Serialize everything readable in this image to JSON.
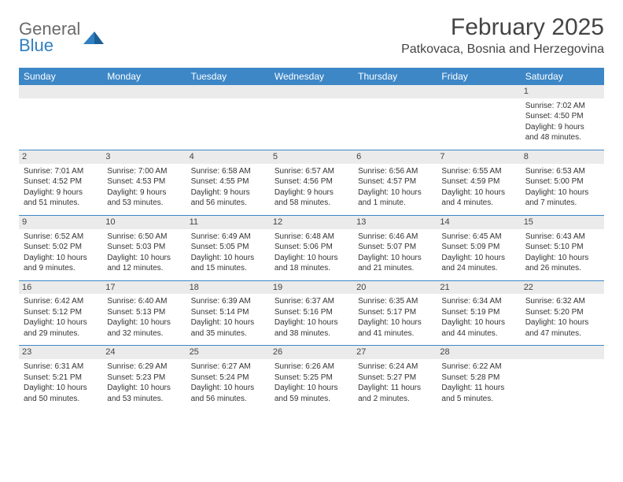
{
  "logo": {
    "line1": "General",
    "line2": "Blue"
  },
  "title": "February 2025",
  "location": "Patkovaca, Bosnia and Herzegovina",
  "colors": {
    "header_bg": "#3d87c7",
    "header_text": "#ffffff",
    "divider": "#3d87c7",
    "daynum_bg": "#ebebeb",
    "logo_gray": "#6a6a6a",
    "logo_blue": "#2f7fc2",
    "page_bg": "#ffffff"
  },
  "day_names": [
    "Sunday",
    "Monday",
    "Tuesday",
    "Wednesday",
    "Thursday",
    "Friday",
    "Saturday"
  ],
  "weeks": [
    [
      {
        "n": "",
        "sr": "",
        "ss": "",
        "dl": ""
      },
      {
        "n": "",
        "sr": "",
        "ss": "",
        "dl": ""
      },
      {
        "n": "",
        "sr": "",
        "ss": "",
        "dl": ""
      },
      {
        "n": "",
        "sr": "",
        "ss": "",
        "dl": ""
      },
      {
        "n": "",
        "sr": "",
        "ss": "",
        "dl": ""
      },
      {
        "n": "",
        "sr": "",
        "ss": "",
        "dl": ""
      },
      {
        "n": "1",
        "sr": "Sunrise: 7:02 AM",
        "ss": "Sunset: 4:50 PM",
        "dl": "Daylight: 9 hours and 48 minutes."
      }
    ],
    [
      {
        "n": "2",
        "sr": "Sunrise: 7:01 AM",
        "ss": "Sunset: 4:52 PM",
        "dl": "Daylight: 9 hours and 51 minutes."
      },
      {
        "n": "3",
        "sr": "Sunrise: 7:00 AM",
        "ss": "Sunset: 4:53 PM",
        "dl": "Daylight: 9 hours and 53 minutes."
      },
      {
        "n": "4",
        "sr": "Sunrise: 6:58 AM",
        "ss": "Sunset: 4:55 PM",
        "dl": "Daylight: 9 hours and 56 minutes."
      },
      {
        "n": "5",
        "sr": "Sunrise: 6:57 AM",
        "ss": "Sunset: 4:56 PM",
        "dl": "Daylight: 9 hours and 58 minutes."
      },
      {
        "n": "6",
        "sr": "Sunrise: 6:56 AM",
        "ss": "Sunset: 4:57 PM",
        "dl": "Daylight: 10 hours and 1 minute."
      },
      {
        "n": "7",
        "sr": "Sunrise: 6:55 AM",
        "ss": "Sunset: 4:59 PM",
        "dl": "Daylight: 10 hours and 4 minutes."
      },
      {
        "n": "8",
        "sr": "Sunrise: 6:53 AM",
        "ss": "Sunset: 5:00 PM",
        "dl": "Daylight: 10 hours and 7 minutes."
      }
    ],
    [
      {
        "n": "9",
        "sr": "Sunrise: 6:52 AM",
        "ss": "Sunset: 5:02 PM",
        "dl": "Daylight: 10 hours and 9 minutes."
      },
      {
        "n": "10",
        "sr": "Sunrise: 6:50 AM",
        "ss": "Sunset: 5:03 PM",
        "dl": "Daylight: 10 hours and 12 minutes."
      },
      {
        "n": "11",
        "sr": "Sunrise: 6:49 AM",
        "ss": "Sunset: 5:05 PM",
        "dl": "Daylight: 10 hours and 15 minutes."
      },
      {
        "n": "12",
        "sr": "Sunrise: 6:48 AM",
        "ss": "Sunset: 5:06 PM",
        "dl": "Daylight: 10 hours and 18 minutes."
      },
      {
        "n": "13",
        "sr": "Sunrise: 6:46 AM",
        "ss": "Sunset: 5:07 PM",
        "dl": "Daylight: 10 hours and 21 minutes."
      },
      {
        "n": "14",
        "sr": "Sunrise: 6:45 AM",
        "ss": "Sunset: 5:09 PM",
        "dl": "Daylight: 10 hours and 24 minutes."
      },
      {
        "n": "15",
        "sr": "Sunrise: 6:43 AM",
        "ss": "Sunset: 5:10 PM",
        "dl": "Daylight: 10 hours and 26 minutes."
      }
    ],
    [
      {
        "n": "16",
        "sr": "Sunrise: 6:42 AM",
        "ss": "Sunset: 5:12 PM",
        "dl": "Daylight: 10 hours and 29 minutes."
      },
      {
        "n": "17",
        "sr": "Sunrise: 6:40 AM",
        "ss": "Sunset: 5:13 PM",
        "dl": "Daylight: 10 hours and 32 minutes."
      },
      {
        "n": "18",
        "sr": "Sunrise: 6:39 AM",
        "ss": "Sunset: 5:14 PM",
        "dl": "Daylight: 10 hours and 35 minutes."
      },
      {
        "n": "19",
        "sr": "Sunrise: 6:37 AM",
        "ss": "Sunset: 5:16 PM",
        "dl": "Daylight: 10 hours and 38 minutes."
      },
      {
        "n": "20",
        "sr": "Sunrise: 6:35 AM",
        "ss": "Sunset: 5:17 PM",
        "dl": "Daylight: 10 hours and 41 minutes."
      },
      {
        "n": "21",
        "sr": "Sunrise: 6:34 AM",
        "ss": "Sunset: 5:19 PM",
        "dl": "Daylight: 10 hours and 44 minutes."
      },
      {
        "n": "22",
        "sr": "Sunrise: 6:32 AM",
        "ss": "Sunset: 5:20 PM",
        "dl": "Daylight: 10 hours and 47 minutes."
      }
    ],
    [
      {
        "n": "23",
        "sr": "Sunrise: 6:31 AM",
        "ss": "Sunset: 5:21 PM",
        "dl": "Daylight: 10 hours and 50 minutes."
      },
      {
        "n": "24",
        "sr": "Sunrise: 6:29 AM",
        "ss": "Sunset: 5:23 PM",
        "dl": "Daylight: 10 hours and 53 minutes."
      },
      {
        "n": "25",
        "sr": "Sunrise: 6:27 AM",
        "ss": "Sunset: 5:24 PM",
        "dl": "Daylight: 10 hours and 56 minutes."
      },
      {
        "n": "26",
        "sr": "Sunrise: 6:26 AM",
        "ss": "Sunset: 5:25 PM",
        "dl": "Daylight: 10 hours and 59 minutes."
      },
      {
        "n": "27",
        "sr": "Sunrise: 6:24 AM",
        "ss": "Sunset: 5:27 PM",
        "dl": "Daylight: 11 hours and 2 minutes."
      },
      {
        "n": "28",
        "sr": "Sunrise: 6:22 AM",
        "ss": "Sunset: 5:28 PM",
        "dl": "Daylight: 11 hours and 5 minutes."
      },
      {
        "n": "",
        "sr": "",
        "ss": "",
        "dl": ""
      }
    ]
  ]
}
